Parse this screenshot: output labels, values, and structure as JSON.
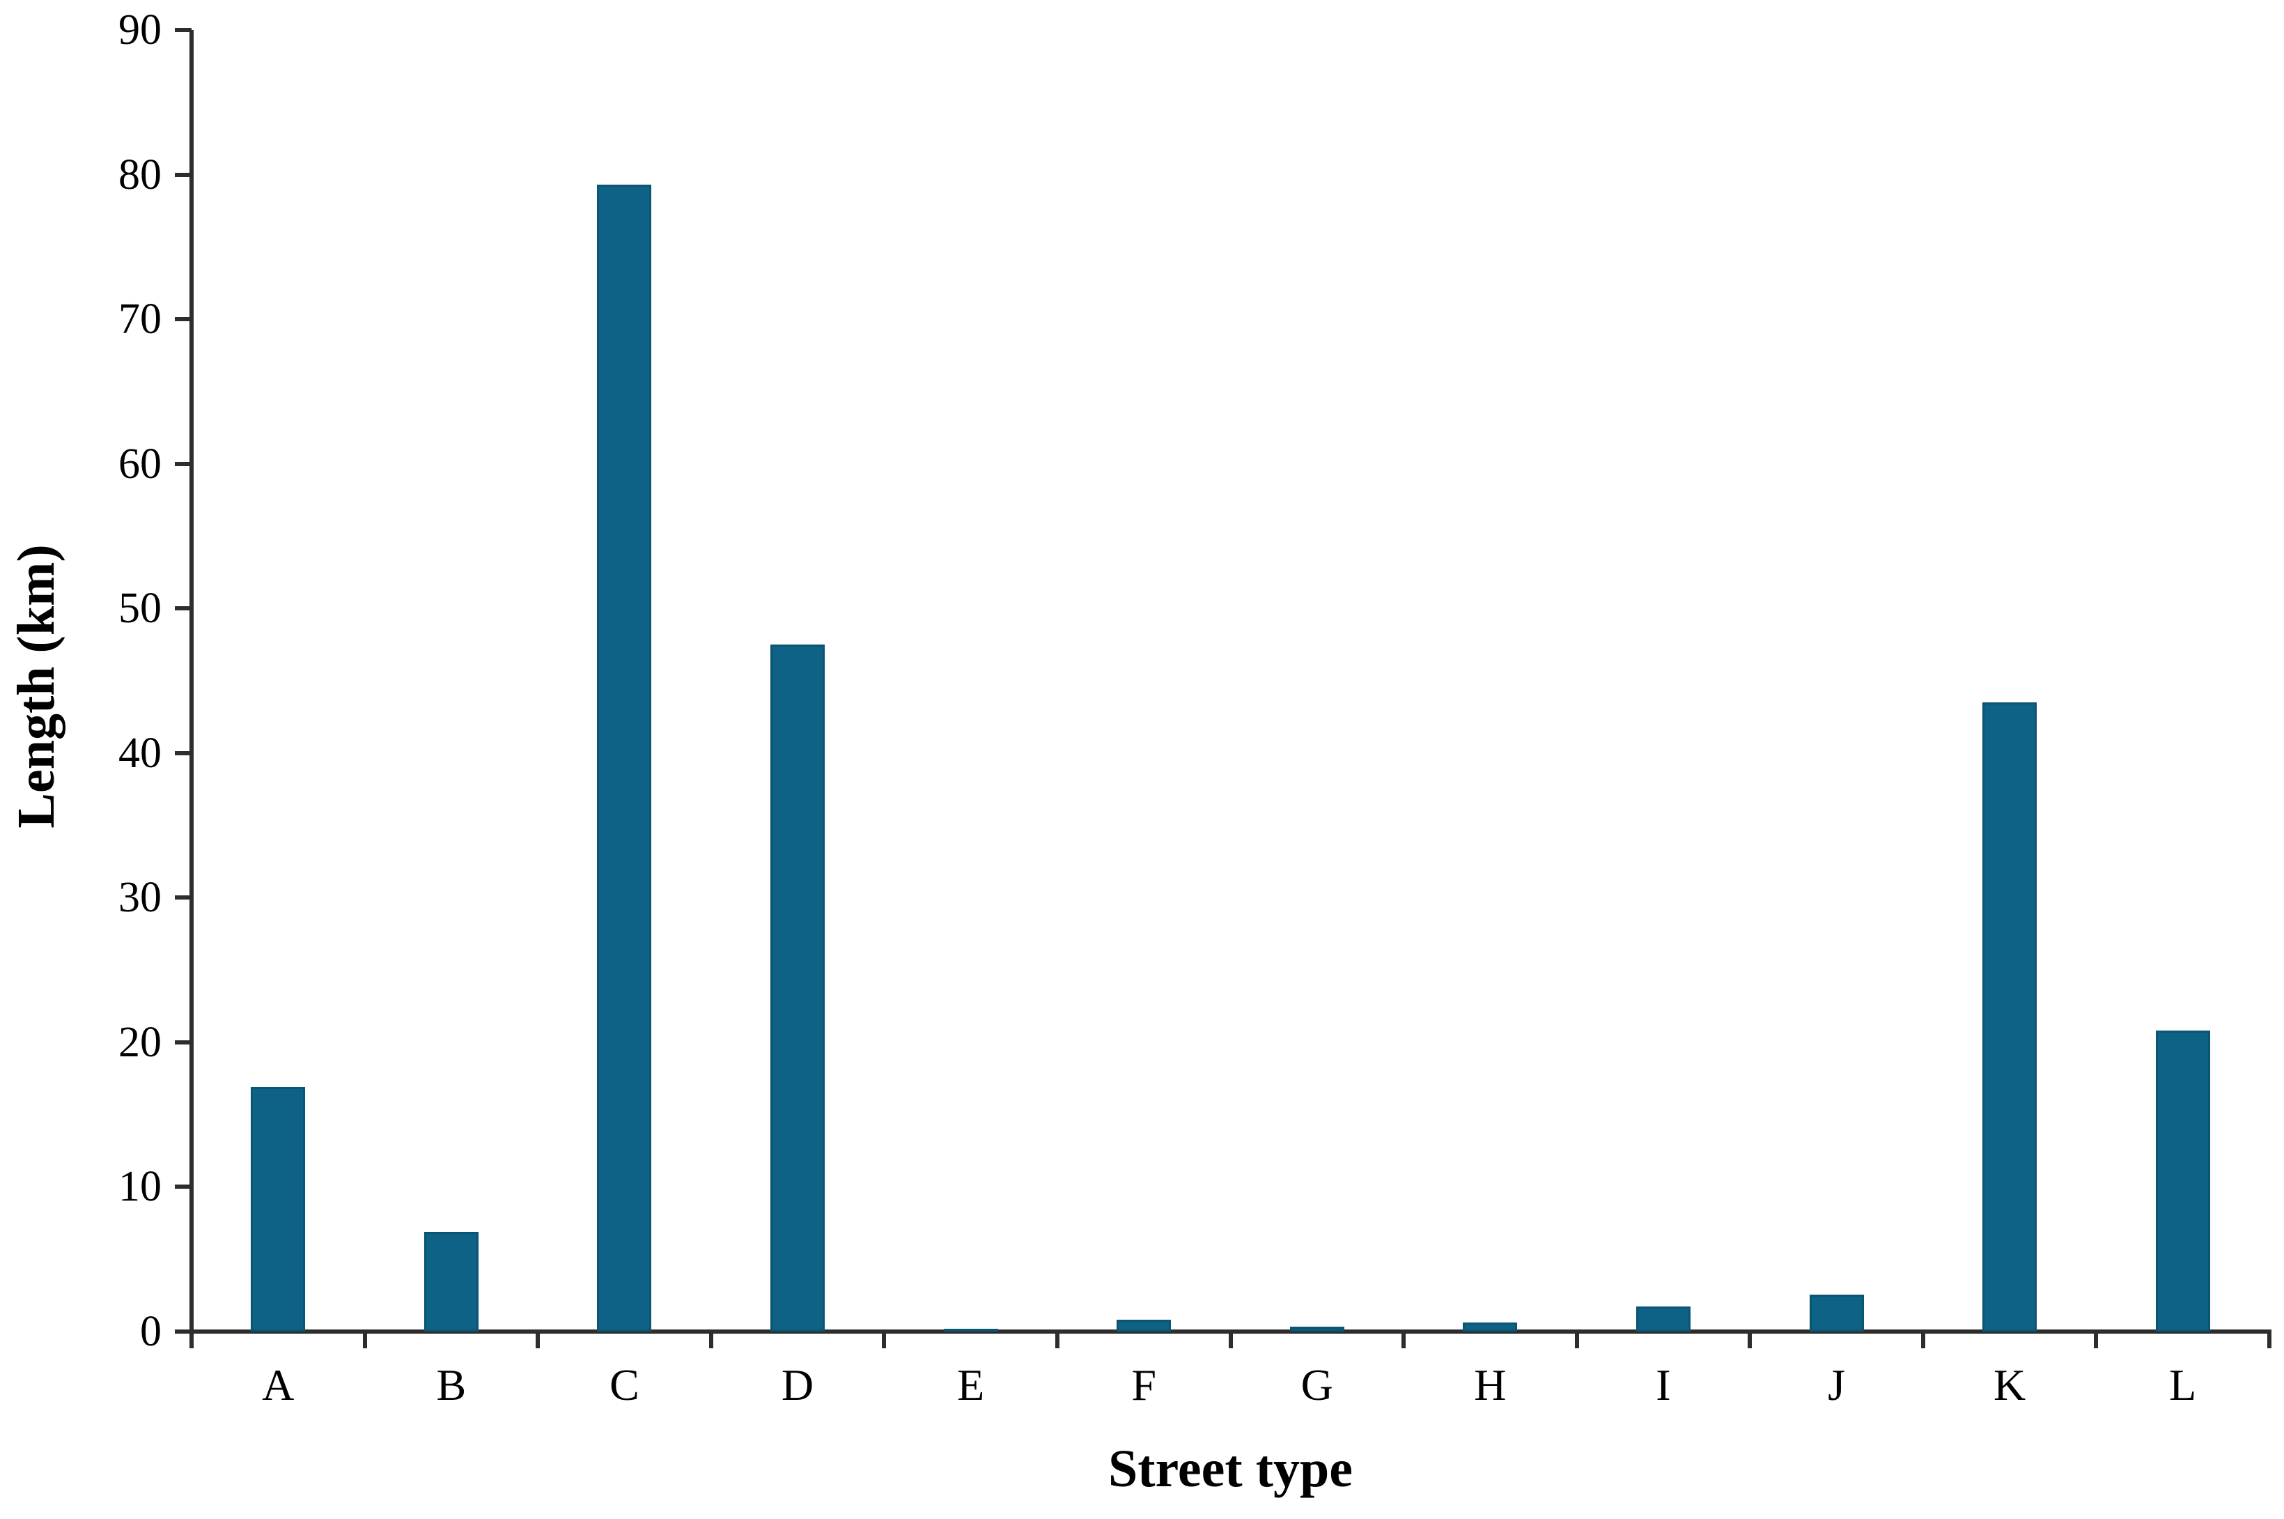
{
  "chart_data": {
    "type": "bar",
    "title": "",
    "xlabel": "Street type",
    "ylabel": "Length (km)",
    "categories": [
      "A",
      "B",
      "C",
      "D",
      "E",
      "F",
      "G",
      "H",
      "I",
      "J",
      "K",
      "L"
    ],
    "values": [
      16.9,
      6.9,
      79.3,
      47.5,
      0.2,
      0.8,
      0.35,
      0.65,
      1.75,
      2.55,
      43.5,
      20.8
    ],
    "ylim": [
      0,
      90
    ],
    "yticks": [
      0,
      10,
      20,
      30,
      40,
      50,
      60,
      70,
      80,
      90
    ],
    "grid": false,
    "legend": null,
    "colors": {
      "bar_fill": "#0e6286",
      "bar_edge": "#0a5573",
      "axis": "#2d2d2d",
      "text": "#000000",
      "background": "#ffffff"
    }
  }
}
